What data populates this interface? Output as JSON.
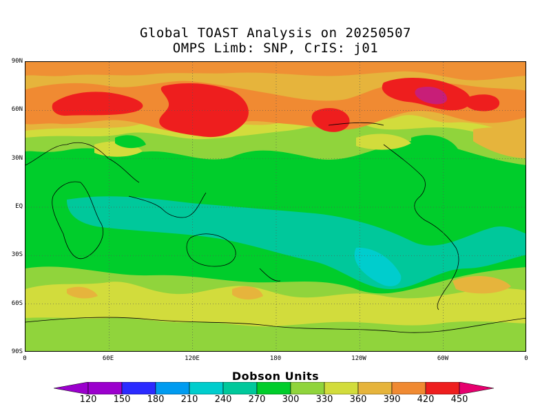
{
  "title_line1": "Global TOAST Analysis on 20250507",
  "title_line2": "OMPS Limb: SNP,  CrIS: j01",
  "axes": {
    "lat_labels": [
      "90N",
      "60N",
      "30N",
      "EQ",
      "30S",
      "60S",
      "90S"
    ],
    "lon_labels": [
      "0",
      "60E",
      "120E",
      "180",
      "120W",
      "60W",
      "0"
    ]
  },
  "colorbar": {
    "title": "Dobson Units",
    "levels": [
      "120",
      "150",
      "180",
      "210",
      "240",
      "270",
      "300",
      "330",
      "360",
      "390",
      "420",
      "450"
    ],
    "colors": [
      "#9b00cd",
      "#2b2bff",
      "#009bf0",
      "#00cdcd",
      "#00c89b",
      "#00cd2b",
      "#90d43c",
      "#d2dc3c",
      "#e6b43c",
      "#f08a32",
      "#ee1e1e"
    ],
    "low_color": "#9b00cd",
    "high_color": "#e6006e"
  },
  "map": {
    "background_color": "#00cd2b",
    "grid_color": "#555555"
  }
}
